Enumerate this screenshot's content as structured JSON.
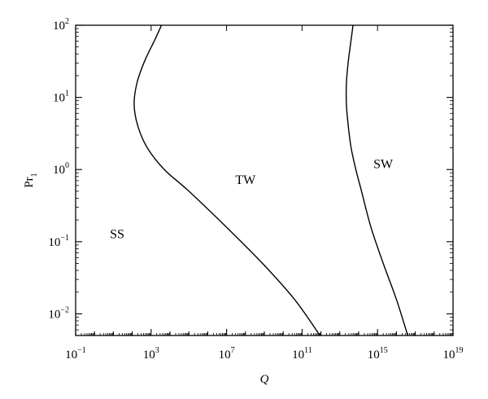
{
  "chart_data": {
    "type": "line",
    "title": "",
    "xlabel": "Q",
    "ylabel": "Pr",
    "ylabel_sub": "1",
    "x_scale": "log",
    "y_scale": "log",
    "xlim_exp": [
      -1,
      19
    ],
    "ylim_exp": [
      -2.3,
      2
    ],
    "x_ticks": [
      {
        "base": "10",
        "exp": "−1",
        "value_exp": -1
      },
      {
        "base": "10",
        "exp": "3",
        "value_exp": 3
      },
      {
        "base": "10",
        "exp": "7",
        "value_exp": 7
      },
      {
        "base": "10",
        "exp": "11",
        "value_exp": 11
      },
      {
        "base": "10",
        "exp": "15",
        "value_exp": 15
      },
      {
        "base": "10",
        "exp": "19",
        "value_exp": 19
      }
    ],
    "y_ticks": [
      {
        "base": "10",
        "exp": "−2",
        "value_exp": -2
      },
      {
        "base": "10",
        "exp": "−1",
        "value_exp": -1
      },
      {
        "base": "10",
        "exp": "0",
        "value_exp": 0
      },
      {
        "base": "10",
        "exp": "1",
        "value_exp": 1
      },
      {
        "base": "10",
        "exp": "2",
        "value_exp": 2
      }
    ],
    "series": [
      {
        "points_log": [
          {
            "x": 11.95,
            "y": -2.3
          },
          {
            "x": 10.6,
            "y": -1.8
          },
          {
            "x": 8.9,
            "y": -1.3
          },
          {
            "x": 7.0,
            "y": -0.8
          },
          {
            "x": 5.0,
            "y": -0.3
          },
          {
            "x": 3.7,
            "y": 0.0
          },
          {
            "x": 2.8,
            "y": 0.3
          },
          {
            "x": 2.3,
            "y": 0.6
          },
          {
            "x": 2.1,
            "y": 0.9
          },
          {
            "x": 2.25,
            "y": 1.2
          },
          {
            "x": 2.65,
            "y": 1.5
          },
          {
            "x": 3.2,
            "y": 1.8
          },
          {
            "x": 3.55,
            "y": 2.0
          }
        ]
      },
      {
        "points_log": [
          {
            "x": 16.6,
            "y": -2.3
          },
          {
            "x": 16.0,
            "y": -1.8
          },
          {
            "x": 15.3,
            "y": -1.3
          },
          {
            "x": 14.65,
            "y": -0.8
          },
          {
            "x": 14.15,
            "y": -0.3
          },
          {
            "x": 13.85,
            "y": 0.0
          },
          {
            "x": 13.6,
            "y": 0.3
          },
          {
            "x": 13.45,
            "y": 0.6
          },
          {
            "x": 13.35,
            "y": 0.9
          },
          {
            "x": 13.35,
            "y": 1.2
          },
          {
            "x": 13.45,
            "y": 1.5
          },
          {
            "x": 13.6,
            "y": 1.8
          },
          {
            "x": 13.7,
            "y": 2.0
          }
        ]
      }
    ],
    "annotations": [
      {
        "text": "SS",
        "x_exp": 1.2,
        "y_exp": -0.95
      },
      {
        "text": "TW",
        "x_exp": 8.0,
        "y_exp": -0.2
      },
      {
        "text": "SW",
        "x_exp": 15.3,
        "y_exp": 0.02
      }
    ],
    "grid": false,
    "legend": "none"
  }
}
